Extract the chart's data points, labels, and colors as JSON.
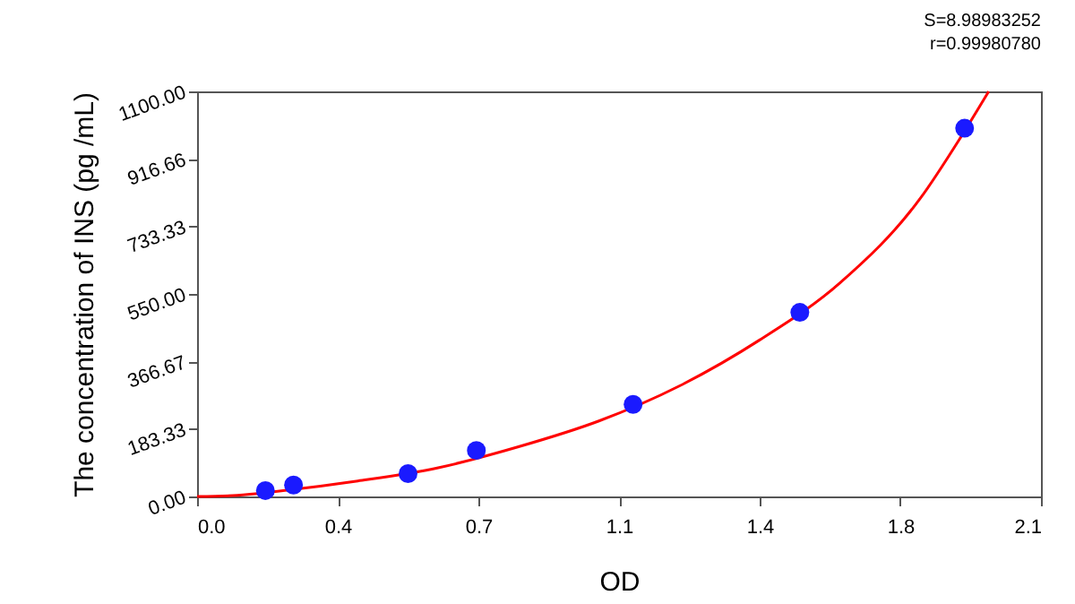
{
  "chart_data": {
    "type": "scatter",
    "xlabel": "OD",
    "ylabel": "The concentration of INS (pg /mL)",
    "annotations": [
      "S=8.98983252",
      "r=0.99980780"
    ],
    "series": [
      {
        "type": "scatter",
        "color": "#1a1aff",
        "marker": "circle",
        "x": [
          0.17,
          0.24,
          0.525,
          0.695,
          1.085,
          1.5,
          1.91
        ],
        "values": [
          16,
          31,
          62,
          125,
          250,
          500,
          1000
        ]
      },
      {
        "type": "line",
        "color": "#ff0000",
        "line_style": "solid",
        "x": [
          0,
          0.1,
          0.2,
          0.4,
          0.6,
          0.8,
          1.0,
          1.2,
          1.4,
          1.6,
          1.8,
          1.9,
          1.97
        ],
        "values": [
          0,
          3,
          14,
          42,
          78,
          135,
          205,
          300,
          425,
          580,
          810,
          975,
          1100
        ]
      }
    ],
    "xlim": [
      0,
      2.1
    ],
    "xticks": [
      {
        "value": 0,
        "label": "0.0"
      },
      {
        "value": 0.35,
        "label": "0.4"
      },
      {
        "value": 0.7,
        "label": "0.7"
      },
      {
        "value": 1.05,
        "label": "1.1"
      },
      {
        "value": 1.4,
        "label": "1.4"
      },
      {
        "value": 1.75,
        "label": "1.8"
      },
      {
        "value": 2.1,
        "label": "2.1"
      }
    ],
    "ylim": [
      0,
      1100
    ],
    "yticks": [
      {
        "value": 0,
        "label": "0.00"
      },
      {
        "value": 183.33,
        "label": "183.33"
      },
      {
        "value": 366.67,
        "label": "366.67"
      },
      {
        "value": 550,
        "label": "550.00"
      },
      {
        "value": 733.33,
        "label": "733.33"
      },
      {
        "value": 916.66,
        "label": "916.66"
      },
      {
        "value": 1100,
        "label": "1100.00"
      }
    ],
    "grid": false
  }
}
